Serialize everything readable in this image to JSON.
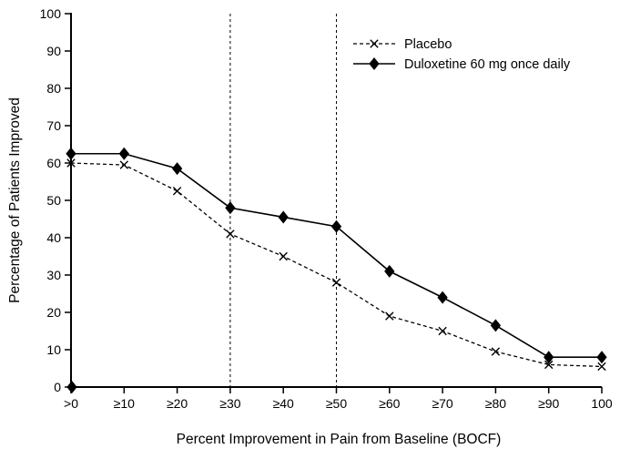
{
  "chart_data": {
    "type": "line",
    "title": "",
    "xlabel": "Percent Improvement in Pain from Baseline (BOCF)",
    "ylabel": "Percentage of Patients Improved",
    "categories": [
      ">0",
      "≥10",
      "≥20",
      "≥30",
      "≥40",
      "≥50",
      "≥60",
      "≥70",
      "≥80",
      "≥90",
      "100"
    ],
    "yticks": [
      0,
      10,
      20,
      30,
      40,
      50,
      60,
      70,
      80,
      90,
      100
    ],
    "ylim": [
      0,
      100
    ],
    "grid": false,
    "legend_position": "upper-right-inside",
    "colors": {
      "axis": "#000000",
      "series": "#000000",
      "background": "#ffffff"
    },
    "reference_lines": {
      "style": "vertical-dashed",
      "at_categories": [
        "≥30",
        "≥50"
      ]
    },
    "origin_marker": {
      "category": ">0",
      "value": 0,
      "marker": "diamond"
    },
    "series": [
      {
        "name": "Placebo",
        "marker": "x",
        "line_style": "dashed",
        "color": "#000000",
        "values": [
          60,
          59.5,
          52.5,
          41,
          35,
          28,
          19,
          15,
          9.5,
          6,
          5.5
        ]
      },
      {
        "name": "Duloxetine 60 mg once daily",
        "marker": "diamond",
        "line_style": "solid",
        "color": "#000000",
        "values": [
          62.5,
          62.5,
          58.5,
          48,
          45.5,
          43,
          31,
          24,
          16.5,
          8,
          8
        ]
      }
    ]
  }
}
